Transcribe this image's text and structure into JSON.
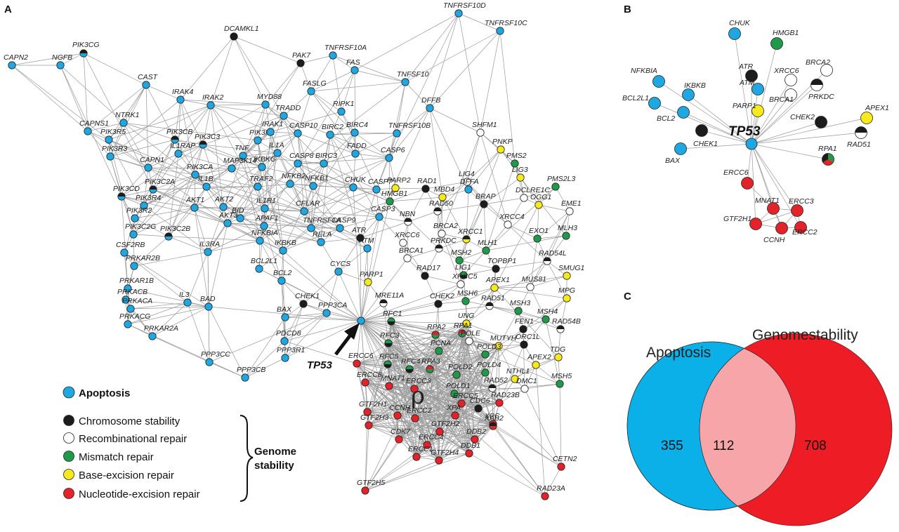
{
  "panels": {
    "a": "A",
    "b": "B",
    "c": "C"
  },
  "colors": {
    "apoptosis": "#1ea7e1",
    "chromosome": "#1c1c1c",
    "recomb": "#ffffff",
    "mismatch": "#1f9a4b",
    "base": "#f6ea1c",
    "nucleotide": "#e3222a"
  },
  "network_a": {
    "highlight": "TP53",
    "rho_symbol": "ρ",
    "nodes": [
      {
        "id": "CAPN2",
        "t": "apoptosis"
      },
      {
        "id": "NGFB",
        "t": "apoptosis"
      },
      {
        "id": "PIK3CG",
        "t": "apoptosis/chromosome"
      },
      {
        "id": "CAST",
        "t": "apoptosis"
      },
      {
        "id": "DCAMKL1",
        "t": "chromosome"
      },
      {
        "id": "PAK7",
        "t": "chromosome"
      },
      {
        "id": "TNFRSF10D",
        "t": "apoptosis"
      },
      {
        "id": "TNFRSF10C",
        "t": "apoptosis"
      },
      {
        "id": "TNFRSF10A",
        "t": "apoptosis"
      },
      {
        "id": "FAS",
        "t": "apoptosis"
      },
      {
        "id": "TNFSF10",
        "t": "apoptosis"
      },
      {
        "id": "IRAK4",
        "t": "apoptosis"
      },
      {
        "id": "IRAK2",
        "t": "apoptosis"
      },
      {
        "id": "MYD88",
        "t": "apoptosis"
      },
      {
        "id": "FASLG",
        "t": "apoptosis"
      },
      {
        "id": "TRADD",
        "t": "apoptosis"
      },
      {
        "id": "RIPK1",
        "t": "apoptosis"
      },
      {
        "id": "DFFB",
        "t": "apoptosis"
      },
      {
        "id": "SHFM1",
        "t": "recomb"
      },
      {
        "id": "CAPNS1",
        "t": "apoptosis"
      },
      {
        "id": "NTRK1",
        "t": "apoptosis"
      },
      {
        "id": "PIK3R5",
        "t": "apoptosis"
      },
      {
        "id": "PIK3CB",
        "t": "apoptosis/chromosome"
      },
      {
        "id": "PIK3C3",
        "t": "apoptosis/chromosome"
      },
      {
        "id": "PIK3R1",
        "t": "apoptosis"
      },
      {
        "id": "IRAK1",
        "t": "apoptosis"
      },
      {
        "id": "CASP10",
        "t": "apoptosis"
      },
      {
        "id": "BIRC2",
        "t": "apoptosis"
      },
      {
        "id": "BIRC4",
        "t": "apoptosis"
      },
      {
        "id": "TNFRSF10B",
        "t": "apoptosis"
      },
      {
        "id": "PNKP",
        "t": "base"
      },
      {
        "id": "PIK3R3",
        "t": "apoptosis"
      },
      {
        "id": "IL1RAP",
        "t": "apoptosis"
      },
      {
        "id": "TNF",
        "t": "apoptosis"
      },
      {
        "id": "IL1A",
        "t": "apoptosis"
      },
      {
        "id": "FADD",
        "t": "apoptosis"
      },
      {
        "id": "CASP6",
        "t": "apoptosis"
      },
      {
        "id": "PMS2",
        "t": "mismatch"
      },
      {
        "id": "CAPN1",
        "t": "apoptosis"
      },
      {
        "id": "PIK3CA",
        "t": "apoptosis"
      },
      {
        "id": "MAP3K14",
        "t": "apoptosis"
      },
      {
        "id": "IKBKG",
        "t": "apoptosis"
      },
      {
        "id": "CASP8",
        "t": "apoptosis"
      },
      {
        "id": "BIRC3",
        "t": "apoptosis"
      },
      {
        "id": "LIG3",
        "t": "base"
      },
      {
        "id": "PMS2L3",
        "t": "mismatch"
      },
      {
        "id": "LIG4",
        "t": "recomb"
      },
      {
        "id": "PIK3CD",
        "t": "apoptosis/chromosome"
      },
      {
        "id": "PIK3C2A",
        "t": "apoptosis/chromosome"
      },
      {
        "id": "IL1B",
        "t": "apoptosis"
      },
      {
        "id": "TRAF2",
        "t": "apoptosis"
      },
      {
        "id": "NFKB2",
        "t": "apoptosis"
      },
      {
        "id": "NFKB1",
        "t": "apoptosis"
      },
      {
        "id": "CHUK",
        "t": "apoptosis"
      },
      {
        "id": "CASP7",
        "t": "apoptosis"
      },
      {
        "id": "PARP2",
        "t": "base"
      },
      {
        "id": "RAD1",
        "t": "chromosome"
      },
      {
        "id": "DFFA",
        "t": "apoptosis"
      },
      {
        "id": "DCLRE1C",
        "t": "recomb"
      },
      {
        "id": "EME1",
        "t": "recomb"
      },
      {
        "id": "PIK3R4",
        "t": "apoptosis"
      },
      {
        "id": "AKT1",
        "t": "apoptosis"
      },
      {
        "id": "AKT2",
        "t": "apoptosis"
      },
      {
        "id": "IL1R1",
        "t": "apoptosis"
      },
      {
        "id": "CFLAR",
        "t": "apoptosis"
      },
      {
        "id": "HMGB1",
        "t": "mismatch"
      },
      {
        "id": "MBD4",
        "t": "base"
      },
      {
        "id": "BRAP",
        "t": "chromosome"
      },
      {
        "id": "OGG1",
        "t": "base"
      },
      {
        "id": "PIK3R2",
        "t": "apoptosis"
      },
      {
        "id": "AKT3",
        "t": "apoptosis"
      },
      {
        "id": "BID",
        "t": "apoptosis"
      },
      {
        "id": "APAF1",
        "t": "apoptosis"
      },
      {
        "id": "TNFRSF1A",
        "t": "apoptosis"
      },
      {
        "id": "CASP3",
        "t": "apoptosis"
      },
      {
        "id": "RAD50",
        "t": "recomb/chromosome"
      },
      {
        "id": "XRCC4",
        "t": "recomb"
      },
      {
        "id": "PIK3C2G",
        "t": "apoptosis"
      },
      {
        "id": "PIK3C2B",
        "t": "apoptosis/chromosome"
      },
      {
        "id": "IL3RA",
        "t": "apoptosis"
      },
      {
        "id": "NFKBIA",
        "t": "apoptosis"
      },
      {
        "id": "RELA",
        "t": "apoptosis"
      },
      {
        "id": "CASP9",
        "t": "apoptosis"
      },
      {
        "id": "NBN",
        "t": "recomb/chromosome"
      },
      {
        "id": "BRCA2",
        "t": "recomb"
      },
      {
        "id": "XRCC1",
        "t": "base/chromosome"
      },
      {
        "id": "EXO1",
        "t": "mismatch"
      },
      {
        "id": "MLH3",
        "t": "mismatch"
      },
      {
        "id": "CSF2RB",
        "t": "apoptosis"
      },
      {
        "id": "PRKAR2B",
        "t": "apoptosis"
      },
      {
        "id": "IKBKB",
        "t": "apoptosis"
      },
      {
        "id": "ATR",
        "t": "chromosome"
      },
      {
        "id": "XRCC6",
        "t": "recomb"
      },
      {
        "id": "ATM",
        "t": "apoptosis"
      },
      {
        "id": "PRKDC",
        "t": "recomb/chromosome"
      },
      {
        "id": "MLH1",
        "t": "mismatch"
      },
      {
        "id": "BCL2",
        "t": "apoptosis"
      },
      {
        "id": "BRCA1",
        "t": "recomb"
      },
      {
        "id": "MSH2",
        "t": "mismatch"
      },
      {
        "id": "RAD54L",
        "t": "recomb/chromosome"
      },
      {
        "id": "PRKAR1B",
        "t": "apoptosis"
      },
      {
        "id": "BCL2L1",
        "t": "apoptosis"
      },
      {
        "id": "CYCS",
        "t": "apoptosis"
      },
      {
        "id": "PARP1",
        "t": "base"
      },
      {
        "id": "RAD17",
        "t": "chromosome"
      },
      {
        "id": "TOPBP1",
        "t": "chromosome"
      },
      {
        "id": "SMUG1",
        "t": "base"
      },
      {
        "id": "LIG1",
        "t": "chromosome/mismatch"
      },
      {
        "id": "XRCC5",
        "t": "recomb"
      },
      {
        "id": "MUS81",
        "t": "recomb"
      },
      {
        "id": "PRKACB",
        "t": "apoptosis"
      },
      {
        "id": "PRKACA",
        "t": "apoptosis"
      },
      {
        "id": "IL3",
        "t": "apoptosis"
      },
      {
        "id": "BAD",
        "t": "apoptosis"
      },
      {
        "id": "CHEK1",
        "t": "chromosome"
      },
      {
        "id": "PPP3CA",
        "t": "apoptosis"
      },
      {
        "id": "MRE11A",
        "t": "recomb/chromosome"
      },
      {
        "id": "CHEK2",
        "t": "chromosome"
      },
      {
        "id": "APEX1",
        "t": "base"
      },
      {
        "id": "MSH6",
        "t": "mismatch"
      },
      {
        "id": "RAD51",
        "t": "recomb/chromosome"
      },
      {
        "id": "MPG",
        "t": "base"
      },
      {
        "id": "PRKACG",
        "t": "apoptosis"
      },
      {
        "id": "PRKAR2A",
        "t": "apoptosis"
      },
      {
        "id": "BAX",
        "t": "apoptosis"
      },
      {
        "id": "MSH3",
        "t": "mismatch"
      },
      {
        "id": "MSH4",
        "t": "mismatch"
      },
      {
        "id": "RAD54B",
        "t": "recomb/chromosome"
      },
      {
        "id": "TP53",
        "t": "apoptosis"
      },
      {
        "id": "RFC1",
        "t": "chromosome/mismatch"
      },
      {
        "id": "UNG",
        "t": "base"
      },
      {
        "id": "FEN1",
        "t": "chromosome"
      },
      {
        "id": "RPA2",
        "t": "mismatch/nucleotide"
      },
      {
        "id": "RPA1",
        "t": "mismatch/nucleotide"
      },
      {
        "id": "POLE",
        "t": "recomb"
      },
      {
        "id": "PDCD8",
        "t": "apoptosis"
      },
      {
        "id": "ORC1L",
        "t": "chromosome"
      },
      {
        "id": "PPP3CC",
        "t": "apoptosis"
      },
      {
        "id": "PPP3R1",
        "t": "apoptosis"
      },
      {
        "id": "MUTYH",
        "t": "base"
      },
      {
        "id": "TDG",
        "t": "base"
      },
      {
        "id": "RFC3",
        "t": "chromosome/mismatch"
      },
      {
        "id": "PCNA",
        "t": "mismatch"
      },
      {
        "id": "POLD3",
        "t": "mismatch"
      },
      {
        "id": "APEX2",
        "t": "base"
      },
      {
        "id": "PPP3CB",
        "t": "apoptosis"
      },
      {
        "id": "RFC5",
        "t": "chromosome/mismatch"
      },
      {
        "id": "RFC4",
        "t": "chromosome/mismatch"
      },
      {
        "id": "RPA3",
        "t": "mismatch/nucleotide"
      },
      {
        "id": "POLD4",
        "t": "mismatch"
      },
      {
        "id": "NTHL1",
        "t": "base"
      },
      {
        "id": "ERCC6",
        "t": "nucleotide"
      },
      {
        "id": "POLD2",
        "t": "mismatch"
      },
      {
        "id": "RAD52",
        "t": "recomb/chromosome"
      },
      {
        "id": "DMC1",
        "t": "recomb"
      },
      {
        "id": "MSH5",
        "t": "mismatch"
      },
      {
        "id": "ERCC8",
        "t": "nucleotide"
      },
      {
        "id": "MNAT1",
        "t": "nucleotide"
      },
      {
        "id": "ERCC3",
        "t": "nucleotide"
      },
      {
        "id": "POLD1",
        "t": "mismatch"
      },
      {
        "id": "ERCC5",
        "t": "nucleotide"
      },
      {
        "id": "CDC6",
        "t": "chromosome"
      },
      {
        "id": "RAD23B",
        "t": "nucleotide"
      },
      {
        "id": "GTF2H1",
        "t": "nucleotide"
      },
      {
        "id": "CCNH",
        "t": "nucleotide"
      },
      {
        "id": "ERCC2",
        "t": "nucleotide"
      },
      {
        "id": "XPA",
        "t": "nucleotide"
      },
      {
        "id": "XPC",
        "t": "nucleotide"
      },
      {
        "id": "GTF2H3",
        "t": "nucleotide"
      },
      {
        "id": "GTF2H2",
        "t": "nucleotide"
      },
      {
        "id": "XAB2",
        "t": "nucleotide/chromosome"
      },
      {
        "id": "CDK7",
        "t": "nucleotide"
      },
      {
        "id": "ERCC4",
        "t": "nucleotide"
      },
      {
        "id": "DDB2",
        "t": "nucleotide"
      },
      {
        "id": "GTF2H4",
        "t": "nucleotide"
      },
      {
        "id": "ERCC1",
        "t": "nucleotide"
      },
      {
        "id": "DDB1",
        "t": "nucleotide"
      },
      {
        "id": "CETN2",
        "t": "nucleotide"
      },
      {
        "id": "GTF2H5",
        "t": "nucleotide"
      },
      {
        "id": "RAD23A",
        "t": "nucleotide"
      }
    ]
  },
  "network_b": {
    "center": "TP53",
    "nodes": [
      {
        "id": "CHUK",
        "t": "apoptosis"
      },
      {
        "id": "HMGB1",
        "t": "mismatch"
      },
      {
        "id": "NFKBIA",
        "t": "apoptosis"
      },
      {
        "id": "IKBKB",
        "t": "apoptosis"
      },
      {
        "id": "ATR",
        "t": "chromosome"
      },
      {
        "id": "ATM",
        "t": "apoptosis"
      },
      {
        "id": "XRCC6",
        "t": "recomb"
      },
      {
        "id": "BRCA2",
        "t": "recomb"
      },
      {
        "id": "BCL2L1",
        "t": "apoptosis"
      },
      {
        "id": "PARP1",
        "t": "base"
      },
      {
        "id": "BRCA1",
        "t": "recomb"
      },
      {
        "id": "PRKDC",
        "t": "recomb/chromosome"
      },
      {
        "id": "BCL2",
        "t": "apoptosis"
      },
      {
        "id": "APEX1",
        "t": "base"
      },
      {
        "id": "CHEK2",
        "t": "chromosome"
      },
      {
        "id": "CHEK1",
        "t": "chromosome"
      },
      {
        "id": "RAD51",
        "t": "recomb/chromosome"
      },
      {
        "id": "BAX",
        "t": "apoptosis"
      },
      {
        "id": "RPA1",
        "t": "mismatch/nucleotide/chromosome"
      },
      {
        "id": "ERCC6",
        "t": "nucleotide"
      },
      {
        "id": "MNAT1",
        "t": "nucleotide"
      },
      {
        "id": "ERCC3",
        "t": "nucleotide"
      },
      {
        "id": "GTF2H1",
        "t": "nucleotide"
      },
      {
        "id": "ERCC2",
        "t": "nucleotide"
      },
      {
        "id": "CCNH",
        "t": "nucleotide"
      }
    ]
  },
  "legend": {
    "apoptosis": "Apoptosis",
    "chromosome": "Chromosome stability",
    "recomb": "Recombinational repair",
    "mismatch": "Mismatch repair",
    "base": "Base-excision repair",
    "nucleotide": "Nucleotide-excision repair",
    "group_line1": "Genome",
    "group_line2": "stability"
  },
  "venn": {
    "label_left": "Apoptosis",
    "label_right": "Genomestability",
    "only_apoptosis": 355,
    "overlap": 112,
    "only_genome": 708,
    "color_left": "#0bb0e8",
    "color_right": "#ee1c24",
    "color_overlap": "#f6a5a8"
  }
}
